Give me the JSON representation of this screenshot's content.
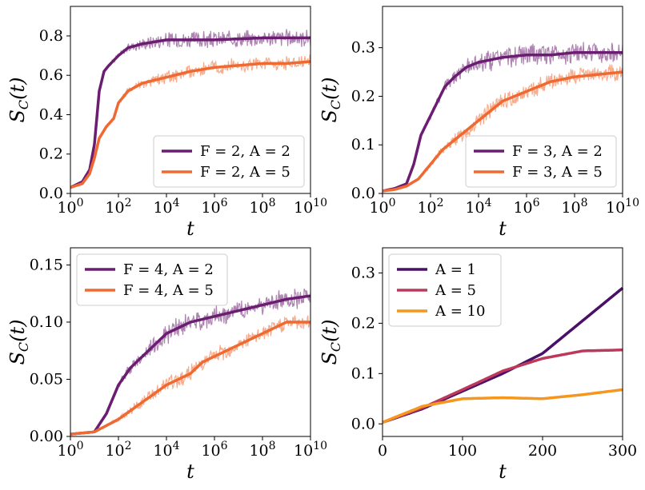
{
  "colors": {
    "purple": "#6b1d72",
    "orange": "#ee6a32",
    "c1": "#4a0f66",
    "c5": "#bb3a5c",
    "c10": "#f5961e"
  },
  "chart_data": [
    {
      "type": "line",
      "xscale": "log",
      "xlim": [
        0,
        10
      ],
      "ylim": [
        0,
        0.95
      ],
      "xticks": [
        "10^0",
        "10^2",
        "10^4",
        "10^6",
        "10^8",
        "10^10"
      ],
      "yticks": [
        "0.0",
        "0.2",
        "0.4",
        "0.6",
        "0.8"
      ],
      "xlabel": "t",
      "ylabel": "S_C(t)",
      "legend_position": "lower-right",
      "series": [
        {
          "name": "F = 2, A = 2",
          "color": "#6b1d72",
          "noise": 0.05,
          "x": [
            0,
            0.5,
            0.8,
            1.0,
            1.2,
            1.4,
            1.6,
            2.0,
            2.4,
            3.0,
            4.0,
            5.0,
            6.0,
            7.0,
            8.0,
            9.0,
            10.0
          ],
          "y": [
            0.03,
            0.06,
            0.12,
            0.25,
            0.52,
            0.62,
            0.65,
            0.7,
            0.74,
            0.76,
            0.78,
            0.78,
            0.78,
            0.785,
            0.79,
            0.79,
            0.79
          ]
        },
        {
          "name": "F = 2, A = 5",
          "color": "#ee6a32",
          "noise": 0.04,
          "x": [
            0,
            0.5,
            0.8,
            1.0,
            1.2,
            1.5,
            1.8,
            2.0,
            2.4,
            3.0,
            4.0,
            5.0,
            6.0,
            7.0,
            8.0,
            9.0,
            10.0
          ],
          "y": [
            0.03,
            0.05,
            0.1,
            0.18,
            0.28,
            0.34,
            0.38,
            0.46,
            0.52,
            0.56,
            0.59,
            0.62,
            0.64,
            0.65,
            0.66,
            0.66,
            0.67
          ]
        }
      ]
    },
    {
      "type": "line",
      "xscale": "log",
      "xlim": [
        0,
        10
      ],
      "ylim": [
        0,
        0.385
      ],
      "xticks": [
        "10^0",
        "10^2",
        "10^4",
        "10^6",
        "10^8",
        "10^10"
      ],
      "yticks": [
        "0.0",
        "0.1",
        "0.2",
        "0.3"
      ],
      "xlabel": "t",
      "ylabel": "S_C(t)",
      "legend_position": "lower-right",
      "series": [
        {
          "name": "F = 3, A = 2",
          "color": "#6b1d72",
          "noise": 0.025,
          "x": [
            0,
            0.5,
            1.0,
            1.3,
            1.6,
            2.0,
            2.3,
            2.6,
            3.0,
            3.5,
            4.0,
            5.0,
            6.0,
            7.0,
            8.0,
            9.0,
            10.0
          ],
          "y": [
            0.005,
            0.01,
            0.02,
            0.06,
            0.12,
            0.16,
            0.19,
            0.22,
            0.24,
            0.26,
            0.27,
            0.28,
            0.285,
            0.285,
            0.29,
            0.29,
            0.29
          ]
        },
        {
          "name": "F = 3, A = 5",
          "color": "#ee6a32",
          "noise": 0.02,
          "x": [
            0,
            0.5,
            1.0,
            1.5,
            2.0,
            2.5,
            3.0,
            3.5,
            4.0,
            4.5,
            5.0,
            6.0,
            7.0,
            8.0,
            9.0,
            10.0
          ],
          "y": [
            0.005,
            0.008,
            0.015,
            0.03,
            0.06,
            0.09,
            0.11,
            0.13,
            0.15,
            0.17,
            0.19,
            0.21,
            0.23,
            0.24,
            0.245,
            0.25
          ]
        }
      ]
    },
    {
      "type": "line",
      "xscale": "log",
      "xlim": [
        0,
        10
      ],
      "ylim": [
        0,
        0.165
      ],
      "xticks": [
        "10^0",
        "10^2",
        "10^4",
        "10^6",
        "10^8",
        "10^10"
      ],
      "yticks": [
        "0.00",
        "0.05",
        "0.10",
        "0.15"
      ],
      "xlabel": "t",
      "ylabel": "S_C(t)",
      "legend_position": "upper-left",
      "series": [
        {
          "name": "F = 4, A = 2",
          "color": "#6b1d72",
          "noise": 0.01,
          "x": [
            0,
            1.0,
            1.5,
            2.0,
            2.5,
            3.0,
            3.5,
            4.0,
            4.5,
            5.0,
            6.0,
            7.0,
            8.0,
            9.0,
            10.0
          ],
          "y": [
            0.002,
            0.004,
            0.02,
            0.045,
            0.06,
            0.07,
            0.08,
            0.09,
            0.095,
            0.1,
            0.105,
            0.11,
            0.115,
            0.12,
            0.123
          ]
        },
        {
          "name": "F = 4, A = 5",
          "color": "#ee6a32",
          "noise": 0.008,
          "x": [
            0,
            1.0,
            2.0,
            3.0,
            4.0,
            5.0,
            5.5,
            6.0,
            7.0,
            8.0,
            9.0,
            10.0
          ],
          "y": [
            0.002,
            0.004,
            0.015,
            0.03,
            0.045,
            0.055,
            0.065,
            0.07,
            0.08,
            0.09,
            0.1,
            0.1
          ]
        }
      ]
    },
    {
      "type": "line",
      "xscale": "linear",
      "xlim": [
        0,
        300
      ],
      "ylim": [
        -0.025,
        0.35
      ],
      "xticks": [
        "0",
        "100",
        "200",
        "300"
      ],
      "yticks": [
        "0.0",
        "0.1",
        "0.2",
        "0.3"
      ],
      "xlabel": "t",
      "ylabel": "S_C(t)",
      "legend_position": "upper-left",
      "series": [
        {
          "name": "A = 1",
          "color": "#4a0f66",
          "noise": 0,
          "x": [
            0,
            50,
            100,
            150,
            200,
            250,
            300
          ],
          "y": [
            0.003,
            0.03,
            0.065,
            0.1,
            0.14,
            0.205,
            0.27
          ]
        },
        {
          "name": "A = 5",
          "color": "#bb3a5c",
          "noise": 0,
          "x": [
            0,
            50,
            100,
            150,
            200,
            250,
            300
          ],
          "y": [
            0.003,
            0.032,
            0.068,
            0.105,
            0.13,
            0.145,
            0.147
          ]
        },
        {
          "name": "A = 10",
          "color": "#f5961e",
          "noise": 0,
          "x": [
            0,
            50,
            100,
            150,
            200,
            250,
            300
          ],
          "y": [
            0.003,
            0.035,
            0.05,
            0.052,
            0.05,
            0.058,
            0.068
          ]
        }
      ]
    }
  ]
}
